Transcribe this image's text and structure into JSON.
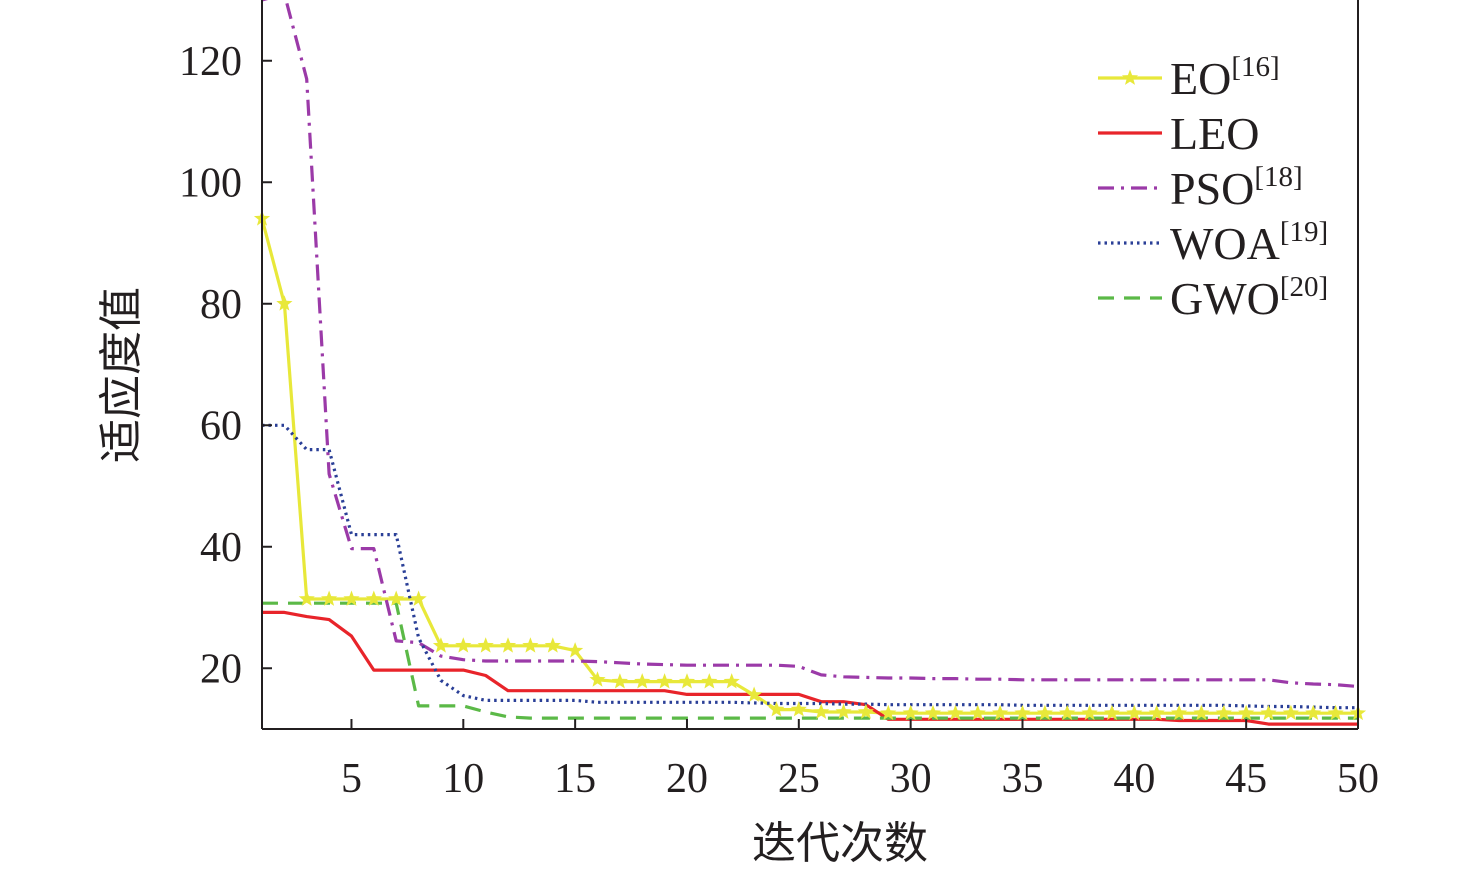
{
  "chart_data": {
    "type": "line",
    "title": "",
    "xlabel": "迭代次数",
    "ylabel": "适应度值",
    "xlim": [
      1,
      50
    ],
    "ylim": [
      10,
      130
    ],
    "xticks": [
      5,
      10,
      15,
      20,
      25,
      30,
      35,
      40,
      45,
      50
    ],
    "yticks": [
      20,
      40,
      60,
      80,
      100,
      120
    ],
    "grid": false,
    "legend_position": "top-right",
    "series": [
      {
        "name": "EO",
        "ref": "[16]",
        "color": "#e8e83a",
        "style": "solid-star",
        "x": [
          1,
          2,
          3,
          4,
          5,
          6,
          7,
          8,
          9,
          10,
          11,
          12,
          13,
          14,
          15,
          16,
          17,
          18,
          19,
          20,
          21,
          22,
          23,
          24,
          25,
          26,
          27,
          28,
          29,
          30,
          31,
          32,
          33,
          34,
          35,
          36,
          37,
          38,
          39,
          40,
          41,
          42,
          43,
          44,
          45,
          46,
          47,
          48,
          49,
          50
        ],
        "y": [
          94,
          80,
          31.4,
          31.4,
          31.4,
          31.4,
          31.4,
          31.4,
          23.7,
          23.7,
          23.7,
          23.7,
          23.7,
          23.7,
          22.9,
          18.1,
          17.8,
          17.8,
          17.8,
          17.8,
          17.8,
          17.8,
          15.6,
          13.2,
          13.2,
          12.8,
          12.8,
          12.8,
          12.6,
          12.6,
          12.6,
          12.6,
          12.6,
          12.6,
          12.6,
          12.6,
          12.6,
          12.6,
          12.6,
          12.6,
          12.6,
          12.6,
          12.6,
          12.6,
          12.6,
          12.6,
          12.6,
          12.6,
          12.6,
          12.6
        ]
      },
      {
        "name": "LEO",
        "ref": "",
        "color": "#e8242a",
        "style": "solid",
        "x": [
          1,
          2,
          3,
          4,
          5,
          6,
          7,
          8,
          9,
          10,
          11,
          12,
          13,
          14,
          15,
          16,
          17,
          18,
          19,
          20,
          21,
          22,
          23,
          24,
          25,
          26,
          27,
          28,
          29,
          30,
          31,
          32,
          33,
          34,
          35,
          36,
          37,
          38,
          39,
          40,
          41,
          42,
          43,
          44,
          45,
          46,
          47,
          48,
          49,
          50
        ],
        "y": [
          29.2,
          29.2,
          28.5,
          28,
          25.3,
          19.7,
          19.7,
          19.7,
          19.7,
          19.7,
          18.8,
          16.3,
          16.3,
          16.3,
          16.3,
          16.3,
          16.3,
          16.3,
          16.3,
          15.7,
          15.7,
          15.7,
          15.7,
          15.7,
          15.7,
          14.5,
          14.5,
          14,
          11.6,
          11.6,
          11.6,
          11.6,
          11.6,
          11.6,
          11.6,
          11.6,
          11.6,
          11.6,
          11.6,
          11.6,
          11.6,
          11.4,
          11.4,
          11.4,
          11.4,
          10.8,
          10.8,
          10.8,
          10.8,
          10.8
        ]
      },
      {
        "name": "PSO",
        "ref": "[18]",
        "color": "#9b3aa8",
        "style": "dash-dot",
        "x": [
          1,
          2,
          3,
          4,
          5,
          6,
          7,
          8,
          9,
          10,
          11,
          12,
          13,
          14,
          15,
          16,
          17,
          18,
          19,
          20,
          21,
          22,
          23,
          24,
          25,
          26,
          27,
          28,
          29,
          30,
          31,
          32,
          33,
          34,
          35,
          36,
          37,
          38,
          39,
          40,
          41,
          42,
          43,
          44,
          45,
          46,
          47,
          48,
          49,
          50
        ],
        "y": [
          130,
          131,
          117,
          52,
          39.7,
          39.7,
          24.5,
          24.2,
          22,
          21.4,
          21.2,
          21.2,
          21.2,
          21.2,
          21.2,
          21.1,
          20.9,
          20.7,
          20.6,
          20.5,
          20.5,
          20.5,
          20.5,
          20.5,
          20.3,
          18.9,
          18.6,
          18.5,
          18.4,
          18.4,
          18.3,
          18.3,
          18.2,
          18.2,
          18.1,
          18.1,
          18.1,
          18.1,
          18.1,
          18.1,
          18.1,
          18.1,
          18.1,
          18.1,
          18.1,
          18.1,
          17.6,
          17.4,
          17.3,
          17
        ]
      },
      {
        "name": "WOA",
        "ref": "[19]",
        "color": "#2a3f97",
        "style": "dotted",
        "x": [
          1,
          2,
          3,
          4,
          5,
          6,
          7,
          8,
          9,
          10,
          11,
          12,
          13,
          14,
          15,
          16,
          17,
          18,
          19,
          20,
          21,
          22,
          23,
          24,
          25,
          26,
          27,
          28,
          29,
          30,
          31,
          32,
          33,
          34,
          35,
          36,
          37,
          38,
          39,
          40,
          41,
          42,
          43,
          44,
          45,
          46,
          47,
          48,
          49,
          50
        ],
        "y": [
          60,
          60,
          56,
          56,
          42,
          42,
          42,
          25,
          18,
          15.5,
          14.7,
          14.7,
          14.7,
          14.7,
          14.7,
          14.4,
          14.4,
          14.4,
          14.4,
          14.4,
          14.4,
          14.4,
          14.3,
          14.2,
          14.2,
          14.2,
          14.1,
          14.1,
          14,
          14,
          14,
          14,
          14,
          14,
          13.9,
          13.9,
          13.9,
          13.9,
          13.9,
          13.9,
          13.9,
          13.9,
          13.9,
          13.9,
          13.8,
          13.7,
          13.7,
          13.6,
          13.5,
          13.5
        ]
      },
      {
        "name": "GWO",
        "ref": "[20]",
        "color": "#5bb947",
        "style": "dashed",
        "x": [
          1,
          2,
          3,
          4,
          5,
          6,
          7,
          8,
          9,
          10,
          11,
          12,
          13,
          14,
          15,
          16,
          17,
          18,
          19,
          20,
          21,
          22,
          23,
          24,
          25,
          26,
          27,
          28,
          29,
          30,
          31,
          32,
          33,
          34,
          35,
          36,
          37,
          38,
          39,
          40,
          41,
          42,
          43,
          44,
          45,
          46,
          47,
          48,
          49,
          50
        ],
        "y": [
          30.7,
          30.7,
          30.7,
          30.7,
          30.7,
          30.7,
          30.7,
          13.8,
          13.8,
          13.8,
          12.8,
          12,
          11.8,
          11.8,
          11.8,
          11.8,
          11.8,
          11.8,
          11.8,
          11.8,
          11.8,
          11.8,
          11.8,
          11.8,
          11.8,
          11.8,
          11.8,
          11.8,
          11.8,
          11.8,
          11.8,
          11.8,
          11.8,
          11.8,
          11.8,
          11.8,
          11.8,
          11.8,
          11.8,
          11.8,
          11.8,
          11.8,
          11.8,
          11.8,
          11.8,
          11.8,
          11.8,
          11.8,
          11.8,
          11.8
        ]
      }
    ]
  }
}
